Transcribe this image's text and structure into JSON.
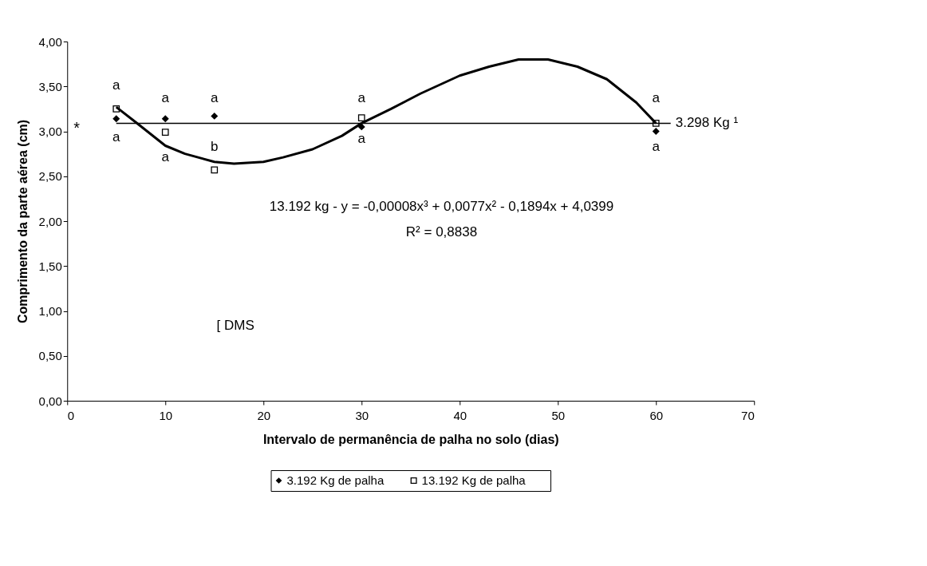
{
  "chart_data": {
    "type": "scatter",
    "xlabel": "Intervalo de permanência de palha no solo (dias)",
    "ylabel": "Comprimento da parte aérea (cm)",
    "x": [
      5,
      10,
      15,
      30,
      60
    ],
    "series": [
      {
        "name": "3.192 Kg de palha",
        "color": "#000000",
        "marker": "diamond",
        "values": [
          3.14,
          3.14,
          3.17,
          3.05,
          3.0
        ]
      },
      {
        "name": "13.192 Kg de palha",
        "color": "#000000",
        "marker": "square",
        "values": [
          3.25,
          2.99,
          2.57,
          3.15,
          3.09
        ]
      },
      {
        "type": "line",
        "color": "#000000",
        "x": [
          5,
          7,
          10,
          12,
          15,
          17,
          20,
          22,
          25,
          28,
          30,
          33,
          36,
          40,
          43,
          46,
          49,
          52,
          55,
          58,
          60
        ],
        "values": [
          3.27,
          3.1,
          2.84,
          2.75,
          2.66,
          2.64,
          2.66,
          2.71,
          2.8,
          2.95,
          3.09,
          3.25,
          3.42,
          3.62,
          3.72,
          3.8,
          3.8,
          3.72,
          3.58,
          3.32,
          3.09
        ]
      },
      {
        "type": "line",
        "color": "#000000",
        "x": [
          5,
          61.5
        ],
        "values": [
          3.09,
          3.09
        ]
      }
    ],
    "xlim": [
      0,
      70
    ],
    "xticks": [
      0,
      10,
      20,
      30,
      40,
      50,
      60,
      70
    ],
    "ylim": [
      0,
      4
    ],
    "yticks": [
      {
        "value": 0,
        "label": "0,00"
      },
      {
        "value": 0.5,
        "label": "0,50"
      },
      {
        "value": 1,
        "label": "1,00"
      },
      {
        "value": 1.5,
        "label": "1,50"
      },
      {
        "value": 2,
        "label": "2,00"
      },
      {
        "value": 2.5,
        "label": "2,50"
      },
      {
        "value": 3,
        "label": "3,00"
      },
      {
        "value": 3.5,
        "label": "3,50"
      },
      {
        "value": 4,
        "label": "4,00"
      }
    ],
    "grid": false,
    "legend": "bottom",
    "annotations": [
      "a",
      "a",
      "a",
      "a",
      "a",
      "b",
      "a",
      "a",
      "a",
      "a",
      "*",
      {
        "text": "3.298 Kg ¹",
        "x": 61.5,
        "y": 3.09
      },
      "13.192 kg - y = -0,00008x³ + 0,0077x² - 0,1894x + 4,0399",
      "R² = 0,8838",
      "[  DMS"
    ]
  }
}
